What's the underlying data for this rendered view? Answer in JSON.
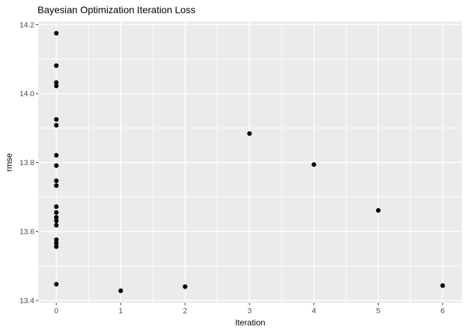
{
  "chart_data": {
    "type": "scatter",
    "title": "Bayesian Optimization Iteration Loss",
    "xlabel": "Iteration",
    "ylabel": "rmse",
    "x_tick_values": [
      0,
      1,
      2,
      3,
      4,
      5,
      6
    ],
    "x_tick_labels": [
      "0",
      "1",
      "2",
      "3",
      "4",
      "5",
      "6"
    ],
    "y_tick_values": [
      13.4,
      13.6,
      13.8,
      14.0,
      14.2
    ],
    "y_tick_labels": [
      "13.4",
      "13.6",
      "13.8",
      "14.0",
      "14.2"
    ],
    "xlim": [
      -0.281,
      6.297
    ],
    "ylim": [
      13.393,
      14.209
    ],
    "grid": true,
    "legend": false,
    "panel_bg": "#EBEBEB",
    "grid_color": "#FFFFFF",
    "point_color": "#000000",
    "tick_label_color": "#4D4D4D",
    "tick_mark_color": "#333333",
    "points": [
      {
        "x": 0,
        "y": 14.175
      },
      {
        "x": 0,
        "y": 14.081
      },
      {
        "x": 0,
        "y": 14.032
      },
      {
        "x": 0,
        "y": 14.022
      },
      {
        "x": 0,
        "y": 13.925
      },
      {
        "x": 0,
        "y": 13.908
      },
      {
        "x": 0,
        "y": 13.821
      },
      {
        "x": 0,
        "y": 13.791
      },
      {
        "x": 0,
        "y": 13.747
      },
      {
        "x": 0,
        "y": 13.733
      },
      {
        "x": 0,
        "y": 13.672
      },
      {
        "x": 0,
        "y": 13.655
      },
      {
        "x": 0,
        "y": 13.641
      },
      {
        "x": 0,
        "y": 13.631
      },
      {
        "x": 0,
        "y": 13.618
      },
      {
        "x": 0,
        "y": 13.576
      },
      {
        "x": 0,
        "y": 13.566
      },
      {
        "x": 0,
        "y": 13.556
      },
      {
        "x": 0,
        "y": 13.447
      },
      {
        "x": 1,
        "y": 13.428
      },
      {
        "x": 2,
        "y": 13.44
      },
      {
        "x": 3,
        "y": 13.884
      },
      {
        "x": 4,
        "y": 13.794
      },
      {
        "x": 5,
        "y": 13.661
      },
      {
        "x": 6,
        "y": 13.443
      }
    ]
  }
}
